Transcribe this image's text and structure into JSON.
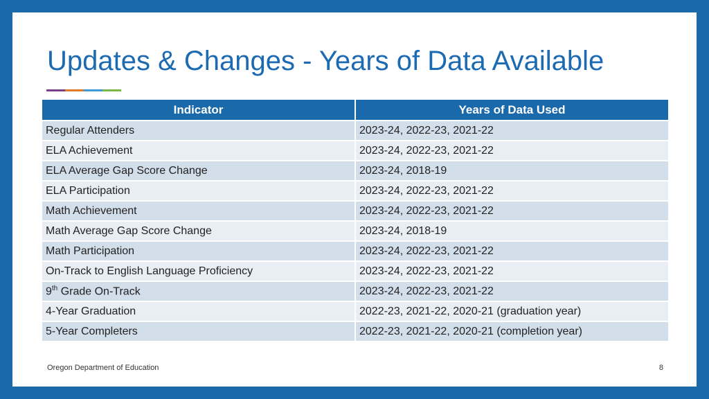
{
  "slide": {
    "title": "Updates & Changes - Years of Data Available",
    "accent_colors": [
      "#7b3f8c",
      "#e07b2a",
      "#3d9ad6",
      "#7ab648"
    ]
  },
  "table": {
    "headers": [
      "Indicator",
      "Years of Data Used"
    ],
    "rows": [
      {
        "indicator": "Regular Attenders",
        "years": "2023-24, 2022-23, 2021-22"
      },
      {
        "indicator": "ELA Achievement",
        "years": "2023-24, 2022-23, 2021-22"
      },
      {
        "indicator": "ELA Average Gap Score Change",
        "years": "2023-24, 2018-19"
      },
      {
        "indicator": "ELA Participation",
        "years": "2023-24, 2022-23, 2021-22"
      },
      {
        "indicator": "Math Achievement",
        "years": "2023-24, 2022-23, 2021-22"
      },
      {
        "indicator": "Math Average Gap Score Change",
        "years": "2023-24, 2018-19"
      },
      {
        "indicator": "Math Participation",
        "years": "2023-24, 2022-23, 2021-22"
      },
      {
        "indicator": "On-Track to English Language Proficiency",
        "years": "2023-24, 2022-23, 2021-22"
      },
      {
        "indicator_num": "9",
        "indicator_sup": "th",
        "indicator_rest": " Grade On-Track",
        "years": "2023-24, 2022-23, 2021-22"
      },
      {
        "indicator": "4-Year Graduation",
        "years": "2022-23, 2021-22, 2020-21 (graduation year)"
      },
      {
        "indicator": "5-Year Completers",
        "years": "2022-23, 2021-22, 2020-21 (completion year)"
      }
    ]
  },
  "footer": {
    "organization": "Oregon Department of Education",
    "page_number": "8"
  }
}
